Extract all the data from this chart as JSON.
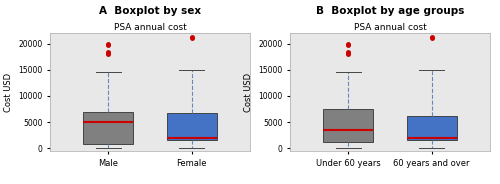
{
  "panel_a_title": "A  Boxplot by sex",
  "panel_b_title": "B  Boxplot by age groups",
  "subplot_title": "PSA annual cost",
  "ylabel": "Cost USD",
  "panel_a": {
    "categories": [
      "Male",
      "Female"
    ],
    "box_colors": [
      "#808080",
      "#4472c4"
    ],
    "whisker_color": "#6688bb",
    "median_color": "#cc0000",
    "boxes": [
      {
        "q1": 800,
        "median": 5000,
        "q3": 7000,
        "whislo": 100,
        "whishi": 14500,
        "fliers": [
          18000,
          18200,
          18400,
          19800,
          20000
        ]
      },
      {
        "q1": 1500,
        "median": 2000,
        "q3": 6800,
        "whislo": 100,
        "whishi": 15000,
        "fliers": [
          21000,
          21200
        ]
      }
    ]
  },
  "panel_b": {
    "categories": [
      "Under 60 years",
      "60 years and over"
    ],
    "box_colors": [
      "#808080",
      "#4472c4"
    ],
    "whisker_color": "#6688bb",
    "median_color": "#cc0000",
    "boxes": [
      {
        "q1": 1200,
        "median": 3500,
        "q3": 7500,
        "whislo": 100,
        "whishi": 14500,
        "fliers": [
          18000,
          18200,
          18400,
          19800,
          20000
        ]
      },
      {
        "q1": 1500,
        "median": 2000,
        "q3": 6200,
        "whislo": 100,
        "whishi": 15000,
        "fliers": [
          21000,
          21200
        ]
      }
    ]
  },
  "ylim": [
    -500,
    22000
  ],
  "yticks": [
    0,
    5000,
    10000,
    15000,
    20000
  ],
  "ax_facecolor": "#e8e8e8",
  "fig_facecolor": "#ffffff",
  "title_fontsize": 7.5,
  "subtitle_fontsize": 6.5,
  "ylabel_fontsize": 6,
  "tick_fontsize": 5.5,
  "xtick_fontsize": 6
}
